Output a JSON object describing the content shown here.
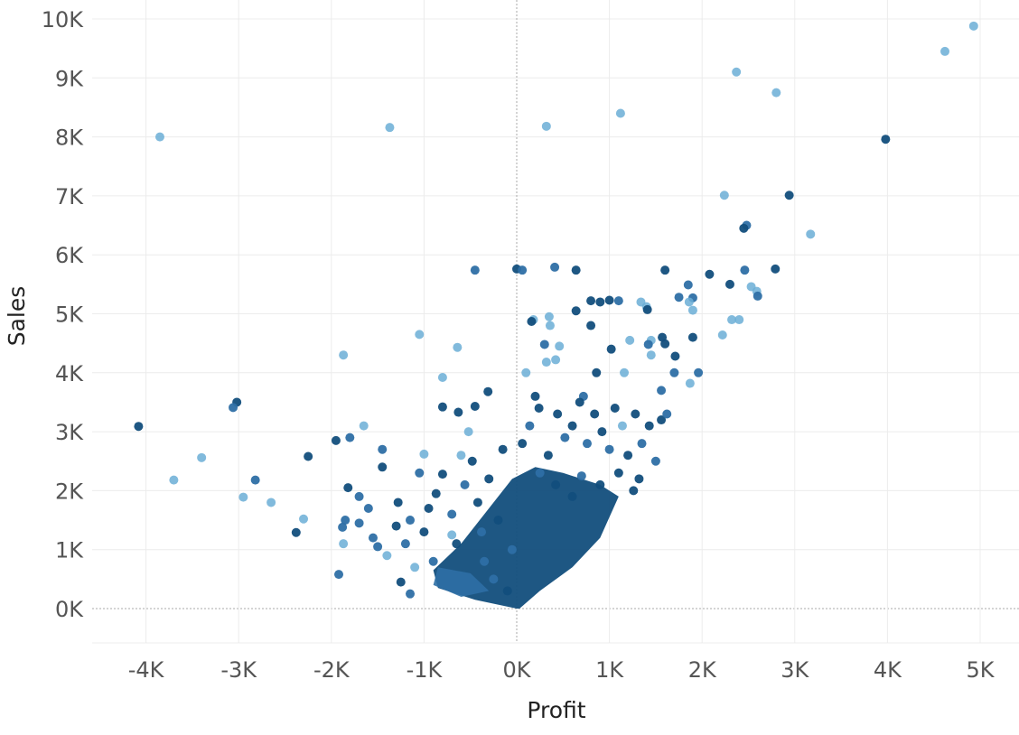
{
  "chart_data": {
    "type": "scatter",
    "title": "",
    "xlabel": "Profit",
    "ylabel": "Sales",
    "xlim": [
      -4500,
      5400
    ],
    "ylim": [
      -600,
      10200
    ],
    "x_ticks": [
      -4000,
      -3000,
      -2000,
      -1000,
      0,
      1000,
      2000,
      3000,
      4000,
      5000
    ],
    "x_tick_labels": [
      "-4K",
      "-3K",
      "-2K",
      "-1K",
      "0K",
      "1K",
      "2K",
      "3K",
      "4K",
      "5K"
    ],
    "y_ticks": [
      0,
      1000,
      2000,
      3000,
      4000,
      5000,
      6000,
      7000,
      8000,
      9000,
      10000
    ],
    "y_tick_labels": [
      "0K",
      "1K",
      "2K",
      "3K",
      "4K",
      "5K",
      "6K",
      "7K",
      "8K",
      "9K",
      "10K"
    ],
    "grid": true,
    "zero_lines": true,
    "legend": "none",
    "colors": {
      "light": "#6baed6",
      "medium": "#2e6fa5",
      "dark": "#124e7c"
    },
    "points": [
      {
        "x": 4930,
        "y": 9880,
        "c": "light"
      },
      {
        "x": 4620,
        "y": 9450,
        "c": "light"
      },
      {
        "x": 2370,
        "y": 9100,
        "c": "light"
      },
      {
        "x": 2800,
        "y": 8750,
        "c": "light"
      },
      {
        "x": 1120,
        "y": 8400,
        "c": "light"
      },
      {
        "x": 320,
        "y": 8180,
        "c": "light"
      },
      {
        "x": -1370,
        "y": 8160,
        "c": "light"
      },
      {
        "x": -3850,
        "y": 8000,
        "c": "light"
      },
      {
        "x": 3980,
        "y": 7960,
        "c": "dark"
      },
      {
        "x": 2940,
        "y": 7010,
        "c": "dark"
      },
      {
        "x": 2240,
        "y": 7010,
        "c": "light"
      },
      {
        "x": 2480,
        "y": 6500,
        "c": "medium"
      },
      {
        "x": 2450,
        "y": 6450,
        "c": "dark"
      },
      {
        "x": 3170,
        "y": 6350,
        "c": "light"
      },
      {
        "x": -450,
        "y": 5740,
        "c": "medium"
      },
      {
        "x": 0,
        "y": 5760,
        "c": "dark"
      },
      {
        "x": 60,
        "y": 5740,
        "c": "medium"
      },
      {
        "x": 410,
        "y": 5790,
        "c": "medium"
      },
      {
        "x": 640,
        "y": 5740,
        "c": "dark"
      },
      {
        "x": 1600,
        "y": 5740,
        "c": "dark"
      },
      {
        "x": 2080,
        "y": 5670,
        "c": "dark"
      },
      {
        "x": 2460,
        "y": 5740,
        "c": "medium"
      },
      {
        "x": 2790,
        "y": 5760,
        "c": "dark"
      },
      {
        "x": 1850,
        "y": 5490,
        "c": "medium"
      },
      {
        "x": 2300,
        "y": 5500,
        "c": "dark"
      },
      {
        "x": 2530,
        "y": 5460,
        "c": "light"
      },
      {
        "x": 2590,
        "y": 5380,
        "c": "light"
      },
      {
        "x": 2600,
        "y": 5300,
        "c": "medium"
      },
      {
        "x": 1750,
        "y": 5280,
        "c": "medium"
      },
      {
        "x": 1900,
        "y": 5270,
        "c": "medium"
      },
      {
        "x": 1860,
        "y": 5200,
        "c": "light"
      },
      {
        "x": 1340,
        "y": 5200,
        "c": "light"
      },
      {
        "x": 1400,
        "y": 5120,
        "c": "light"
      },
      {
        "x": 1410,
        "y": 5070,
        "c": "dark"
      },
      {
        "x": 1900,
        "y": 5060,
        "c": "light"
      },
      {
        "x": 800,
        "y": 5220,
        "c": "dark"
      },
      {
        "x": 900,
        "y": 5200,
        "c": "dark"
      },
      {
        "x": 1000,
        "y": 5230,
        "c": "dark"
      },
      {
        "x": 640,
        "y": 5050,
        "c": "dark"
      },
      {
        "x": 1100,
        "y": 5220,
        "c": "medium"
      },
      {
        "x": 350,
        "y": 4950,
        "c": "light"
      },
      {
        "x": 180,
        "y": 4900,
        "c": "light"
      },
      {
        "x": 160,
        "y": 4870,
        "c": "dark"
      },
      {
        "x": 360,
        "y": 4800,
        "c": "light"
      },
      {
        "x": 800,
        "y": 4800,
        "c": "dark"
      },
      {
        "x": 2400,
        "y": 4900,
        "c": "light"
      },
      {
        "x": 2320,
        "y": 4900,
        "c": "light"
      },
      {
        "x": 2220,
        "y": 4640,
        "c": "light"
      },
      {
        "x": 1900,
        "y": 4600,
        "c": "dark"
      },
      {
        "x": 1570,
        "y": 4600,
        "c": "dark"
      },
      {
        "x": 1450,
        "y": 4550,
        "c": "light"
      },
      {
        "x": 1220,
        "y": 4550,
        "c": "light"
      },
      {
        "x": 1420,
        "y": 4480,
        "c": "medium"
      },
      {
        "x": 1600,
        "y": 4490,
        "c": "dark"
      },
      {
        "x": -1050,
        "y": 4650,
        "c": "light"
      },
      {
        "x": -640,
        "y": 4430,
        "c": "light"
      },
      {
        "x": 300,
        "y": 4480,
        "c": "medium"
      },
      {
        "x": 460,
        "y": 4450,
        "c": "light"
      },
      {
        "x": 1020,
        "y": 4400,
        "c": "dark"
      },
      {
        "x": -1870,
        "y": 4300,
        "c": "light"
      },
      {
        "x": 420,
        "y": 4220,
        "c": "light"
      },
      {
        "x": 320,
        "y": 4180,
        "c": "light"
      },
      {
        "x": 1450,
        "y": 4300,
        "c": "light"
      },
      {
        "x": 1710,
        "y": 4280,
        "c": "dark"
      },
      {
        "x": 860,
        "y": 4000,
        "c": "dark"
      },
      {
        "x": 1160,
        "y": 4000,
        "c": "light"
      },
      {
        "x": 1700,
        "y": 4000,
        "c": "medium"
      },
      {
        "x": 1960,
        "y": 4000,
        "c": "medium"
      },
      {
        "x": 100,
        "y": 4000,
        "c": "light"
      },
      {
        "x": 1870,
        "y": 3820,
        "c": "light"
      },
      {
        "x": -800,
        "y": 3920,
        "c": "light"
      },
      {
        "x": -310,
        "y": 3680,
        "c": "dark"
      },
      {
        "x": 200,
        "y": 3600,
        "c": "dark"
      },
      {
        "x": 720,
        "y": 3600,
        "c": "medium"
      },
      {
        "x": 1560,
        "y": 3700,
        "c": "medium"
      },
      {
        "x": -4080,
        "y": 3090,
        "c": "dark"
      },
      {
        "x": -3020,
        "y": 3500,
        "c": "dark"
      },
      {
        "x": -3060,
        "y": 3410,
        "c": "medium"
      },
      {
        "x": -1650,
        "y": 3100,
        "c": "light"
      },
      {
        "x": -800,
        "y": 3420,
        "c": "dark"
      },
      {
        "x": -630,
        "y": 3330,
        "c": "dark"
      },
      {
        "x": -450,
        "y": 3430,
        "c": "dark"
      },
      {
        "x": -1950,
        "y": 2850,
        "c": "dark"
      },
      {
        "x": -1800,
        "y": 2900,
        "c": "medium"
      },
      {
        "x": -2250,
        "y": 2580,
        "c": "dark"
      },
      {
        "x": -1450,
        "y": 2700,
        "c": "medium"
      },
      {
        "x": -1450,
        "y": 2400,
        "c": "dark"
      },
      {
        "x": -3400,
        "y": 2560,
        "c": "light"
      },
      {
        "x": -3700,
        "y": 2180,
        "c": "light"
      },
      {
        "x": -2820,
        "y": 2180,
        "c": "medium"
      },
      {
        "x": -2950,
        "y": 1890,
        "c": "light"
      },
      {
        "x": -2650,
        "y": 1800,
        "c": "light"
      },
      {
        "x": -1700,
        "y": 1900,
        "c": "medium"
      },
      {
        "x": -1820,
        "y": 2050,
        "c": "dark"
      },
      {
        "x": -2300,
        "y": 1520,
        "c": "light"
      },
      {
        "x": -2380,
        "y": 1290,
        "c": "dark"
      },
      {
        "x": -1920,
        "y": 580,
        "c": "medium"
      },
      {
        "x": -1850,
        "y": 1500,
        "c": "medium"
      },
      {
        "x": -1880,
        "y": 1380,
        "c": "medium"
      },
      {
        "x": -1870,
        "y": 1100,
        "c": "light"
      },
      {
        "x": -1700,
        "y": 1450,
        "c": "medium"
      },
      {
        "x": -1600,
        "y": 1700,
        "c": "medium"
      },
      {
        "x": -1550,
        "y": 1200,
        "c": "medium"
      },
      {
        "x": -1500,
        "y": 1050,
        "c": "medium"
      },
      {
        "x": -1400,
        "y": 900,
        "c": "light"
      },
      {
        "x": -1300,
        "y": 1400,
        "c": "dark"
      },
      {
        "x": -1280,
        "y": 1800,
        "c": "dark"
      },
      {
        "x": -1200,
        "y": 1100,
        "c": "medium"
      },
      {
        "x": -1150,
        "y": 1500,
        "c": "medium"
      },
      {
        "x": -1250,
        "y": 450,
        "c": "dark"
      },
      {
        "x": -1150,
        "y": 250,
        "c": "medium"
      },
      {
        "x": -1100,
        "y": 700,
        "c": "light"
      },
      {
        "x": -1050,
        "y": 2300,
        "c": "medium"
      },
      {
        "x": -1000,
        "y": 2620,
        "c": "light"
      },
      {
        "x": -1000,
        "y": 1300,
        "c": "dark"
      },
      {
        "x": -950,
        "y": 1700,
        "c": "dark"
      },
      {
        "x": -900,
        "y": 800,
        "c": "medium"
      },
      {
        "x": -870,
        "y": 1950,
        "c": "dark"
      },
      {
        "x": -800,
        "y": 2280,
        "c": "dark"
      },
      {
        "x": -700,
        "y": 1600,
        "c": "medium"
      },
      {
        "x": -650,
        "y": 1100,
        "c": "dark"
      },
      {
        "x": -600,
        "y": 2600,
        "c": "light"
      },
      {
        "x": -520,
        "y": 3000,
        "c": "light"
      },
      {
        "x": -420,
        "y": 1800,
        "c": "dark"
      },
      {
        "x": -380,
        "y": 1300,
        "c": "medium"
      },
      {
        "x": -350,
        "y": 800,
        "c": "medium"
      },
      {
        "x": -300,
        "y": 2200,
        "c": "dark"
      },
      {
        "x": -250,
        "y": 500,
        "c": "medium"
      },
      {
        "x": -200,
        "y": 1500,
        "c": "dark"
      },
      {
        "x": -150,
        "y": 2700,
        "c": "dark"
      },
      {
        "x": -100,
        "y": 300,
        "c": "dark"
      },
      {
        "x": -50,
        "y": 1000,
        "c": "medium"
      },
      {
        "x": 60,
        "y": 2800,
        "c": "dark"
      },
      {
        "x": 140,
        "y": 3100,
        "c": "medium"
      },
      {
        "x": 240,
        "y": 3400,
        "c": "dark"
      },
      {
        "x": 340,
        "y": 2600,
        "c": "dark"
      },
      {
        "x": 440,
        "y": 3300,
        "c": "dark"
      },
      {
        "x": 520,
        "y": 2900,
        "c": "medium"
      },
      {
        "x": 600,
        "y": 3100,
        "c": "dark"
      },
      {
        "x": 680,
        "y": 3500,
        "c": "dark"
      },
      {
        "x": 760,
        "y": 2800,
        "c": "medium"
      },
      {
        "x": 840,
        "y": 3300,
        "c": "dark"
      },
      {
        "x": 920,
        "y": 3000,
        "c": "dark"
      },
      {
        "x": 1000,
        "y": 2700,
        "c": "medium"
      },
      {
        "x": 1060,
        "y": 3400,
        "c": "dark"
      },
      {
        "x": 1140,
        "y": 3100,
        "c": "light"
      },
      {
        "x": 1200,
        "y": 2600,
        "c": "dark"
      },
      {
        "x": 1280,
        "y": 3300,
        "c": "dark"
      },
      {
        "x": 1350,
        "y": 2800,
        "c": "medium"
      },
      {
        "x": 1430,
        "y": 3100,
        "c": "dark"
      },
      {
        "x": 1500,
        "y": 2500,
        "c": "medium"
      },
      {
        "x": 1560,
        "y": 3200,
        "c": "dark"
      },
      {
        "x": 1620,
        "y": 3300,
        "c": "medium"
      },
      {
        "x": 1320,
        "y": 2200,
        "c": "dark"
      },
      {
        "x": 1100,
        "y": 2300,
        "c": "dark"
      },
      {
        "x": 1260,
        "y": 2000,
        "c": "dark"
      },
      {
        "x": 900,
        "y": 2100,
        "c": "dark"
      },
      {
        "x": 700,
        "y": 2250,
        "c": "medium"
      },
      {
        "x": 600,
        "y": 1900,
        "c": "dark"
      },
      {
        "x": 420,
        "y": 2100,
        "c": "dark"
      },
      {
        "x": 250,
        "y": 2300,
        "c": "medium"
      },
      {
        "x": -480,
        "y": 2500,
        "c": "dark"
      },
      {
        "x": -560,
        "y": 2100,
        "c": "medium"
      },
      {
        "x": -700,
        "y": 1250,
        "c": "light"
      }
    ]
  }
}
